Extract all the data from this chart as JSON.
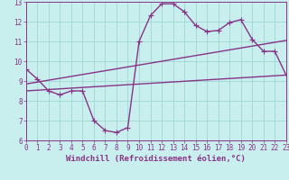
{
  "xlabel": "Windchill (Refroidissement éolien,°C)",
  "bg_color": "#c8eeed",
  "grid_color": "#9ed8d5",
  "line_color": "#883388",
  "xlim": [
    0,
    23
  ],
  "ylim": [
    6,
    13
  ],
  "xticks": [
    0,
    1,
    2,
    3,
    4,
    5,
    6,
    7,
    8,
    9,
    10,
    11,
    12,
    13,
    14,
    15,
    16,
    17,
    18,
    19,
    20,
    21,
    22,
    23
  ],
  "yticks": [
    6,
    7,
    8,
    9,
    10,
    11,
    12,
    13
  ],
  "line1_x": [
    0,
    1,
    2,
    3,
    4,
    5,
    6,
    7,
    8,
    9,
    10,
    11,
    12,
    13,
    14,
    15,
    16,
    17,
    18,
    19,
    20,
    21,
    22,
    23
  ],
  "line1_y": [
    9.6,
    9.1,
    8.5,
    8.3,
    8.5,
    8.5,
    7.0,
    6.5,
    6.4,
    6.65,
    11.0,
    12.3,
    12.9,
    12.9,
    12.5,
    11.8,
    11.5,
    11.55,
    11.95,
    12.1,
    11.1,
    10.5,
    10.5,
    9.3
  ],
  "line2_x": [
    0,
    23
  ],
  "line2_y": [
    8.85,
    11.05
  ],
  "line3_x": [
    0,
    23
  ],
  "line3_y": [
    8.5,
    9.3
  ],
  "marker": "+",
  "markersize": 4,
  "linewidth": 1.0,
  "tick_fontsize": 5.5,
  "xlabel_fontsize": 6.5
}
